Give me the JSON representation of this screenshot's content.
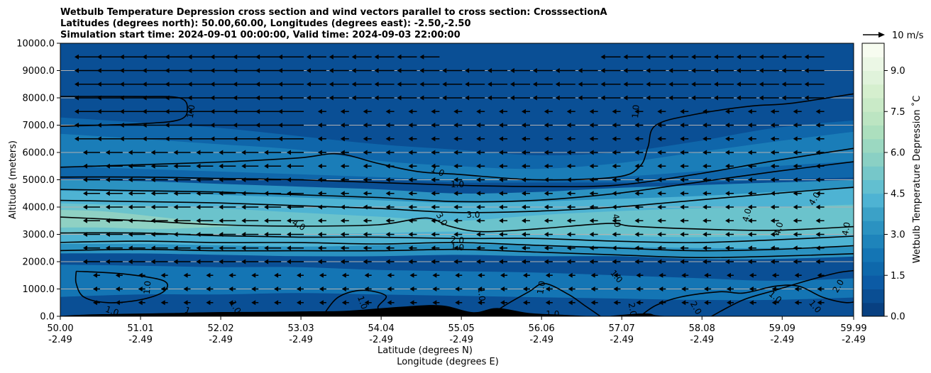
{
  "chart_data": {
    "type": "heatmap",
    "title_lines": [
      "Wetbulb Temperature Depression cross section and wind vectors parallel to cross section: CrosssectionA",
      "Latitudes (degrees north): 50.00,60.00, Longitudes (degrees east): -2.50,-2.50",
      "Simulation start time: 2024-09-01 00:00:00, Valid time: 2024-09-03 22:00:00"
    ],
    "ylabel": "Altitude (meters)",
    "xlabel_lines": [
      "Latitude (degrees N)",
      "Longitude (degrees E)"
    ],
    "ylim": [
      0,
      10000
    ],
    "xlim": [
      50.0,
      59.99
    ],
    "y_ticks": [
      {
        "value": 0,
        "label": "0.0"
      },
      {
        "value": 1000,
        "label": "1000.0"
      },
      {
        "value": 2000,
        "label": "2000.0"
      },
      {
        "value": 3000,
        "label": "3000.0"
      },
      {
        "value": 4000,
        "label": "4000.0"
      },
      {
        "value": 5000,
        "label": "5000.0"
      },
      {
        "value": 6000,
        "label": "6000.0"
      },
      {
        "value": 7000,
        "label": "7000.0"
      },
      {
        "value": 8000,
        "label": "8000.0"
      },
      {
        "value": 9000,
        "label": "9000.0"
      },
      {
        "value": 10000,
        "label": "10000.0"
      }
    ],
    "x_ticks": [
      {
        "value": 50.0,
        "lat": "50.00",
        "lon": "-2.49"
      },
      {
        "value": 51.01,
        "lat": "51.01",
        "lon": "-2.49"
      },
      {
        "value": 52.02,
        "lat": "52.02",
        "lon": "-2.49"
      },
      {
        "value": 53.03,
        "lat": "53.03",
        "lon": "-2.49"
      },
      {
        "value": 54.04,
        "lat": "54.04",
        "lon": "-2.49"
      },
      {
        "value": 55.05,
        "lat": "55.05",
        "lon": "-2.49"
      },
      {
        "value": 56.06,
        "lat": "56.06",
        "lon": "-2.49"
      },
      {
        "value": 57.07,
        "lat": "57.07",
        "lon": "-2.49"
      },
      {
        "value": 58.08,
        "lat": "58.08",
        "lon": "-2.49"
      },
      {
        "value": 59.09,
        "lat": "59.09",
        "lon": "-2.49"
      },
      {
        "value": 59.99,
        "lat": "59.99",
        "lon": "-2.49"
      }
    ],
    "grid": "horizontal",
    "colorbar": {
      "label": "Wetbulb Temperature Depression ˚C",
      "range": [
        0,
        10
      ],
      "step": 0.5,
      "ticks": [
        {
          "value": 0,
          "label": "0.0"
        },
        {
          "value": 1.5,
          "label": "1.5"
        },
        {
          "value": 3.0,
          "label": "3.0"
        },
        {
          "value": 4.5,
          "label": "4.5"
        },
        {
          "value": 6.0,
          "label": "6.0"
        },
        {
          "value": 7.5,
          "label": "7.5"
        },
        {
          "value": 9.0,
          "label": "9.0"
        }
      ],
      "colors": [
        "#084081",
        "#0a4e93",
        "#0c5ba5",
        "#0e68ab",
        "#1475b4",
        "#1e84bb",
        "#2b92c1",
        "#3ba1c7",
        "#4eb3d3",
        "#62bfd0",
        "#76c7c9",
        "#8ad0c4",
        "#9bd8c1",
        "#acdfbe",
        "#bce5c2",
        "#c9eac7",
        "#d5efce",
        "#e0f3db",
        "#ebf7e5",
        "#f7fcf0"
      ]
    },
    "wind_key": {
      "label": "10 m/s",
      "speed": 10
    },
    "contour_levels": [
      1.0,
      2.0,
      3.0,
      4.0
    ],
    "contour_labels": [
      {
        "text": "1.0",
        "lat": 51.65,
        "alt": 7500,
        "rot": -80
      },
      {
        "text": "1.0",
        "lat": 54.75,
        "alt": 5300,
        "rot": 25
      },
      {
        "text": "1.0",
        "lat": 55.0,
        "alt": 4820,
        "rot": 0
      },
      {
        "text": "3.0",
        "lat": 54.8,
        "alt": 3550,
        "rot": 60
      },
      {
        "text": "3.0",
        "lat": 55.2,
        "alt": 3700,
        "rot": 0
      },
      {
        "text": "4.0",
        "lat": 53.0,
        "alt": 3330,
        "rot": 30
      },
      {
        "text": "2.0",
        "lat": 55.0,
        "alt": 2780,
        "rot": 5
      },
      {
        "text": "1.0",
        "lat": 55.0,
        "alt": 2520,
        "rot": 5
      },
      {
        "text": "4.0",
        "lat": 57.0,
        "alt": 3500,
        "rot": 80
      },
      {
        "text": "4.0",
        "lat": 58.65,
        "alt": 3700,
        "rot": -75
      },
      {
        "text": "4.0",
        "lat": 59.05,
        "alt": 3200,
        "rot": -75
      },
      {
        "text": "4.0",
        "lat": 59.5,
        "alt": 4300,
        "rot": -60
      },
      {
        "text": "4.0",
        "lat": 59.9,
        "alt": 3200,
        "rot": -80
      },
      {
        "text": "1.0",
        "lat": 57.25,
        "alt": 7500,
        "rot": -85
      },
      {
        "text": "1.0",
        "lat": 57.0,
        "alt": 1450,
        "rot": 50
      },
      {
        "text": "1.0",
        "lat": 51.1,
        "alt": 1050,
        "rot": -85
      },
      {
        "text": "1.0",
        "lat": 50.65,
        "alt": 180,
        "rot": 20
      },
      {
        "text": "1",
        "lat": 51.6,
        "alt": 200,
        "rot": 20
      },
      {
        "text": "1.0",
        "lat": 52.2,
        "alt": 330,
        "rot": 60
      },
      {
        "text": "1.0",
        "lat": 53.8,
        "alt": 500,
        "rot": 70
      },
      {
        "text": "1.0",
        "lat": 55.3,
        "alt": 800,
        "rot": 85
      },
      {
        "text": "1.0",
        "lat": 56.06,
        "alt": 1050,
        "rot": -80
      },
      {
        "text": "1.0",
        "lat": 56.2,
        "alt": 60,
        "rot": 0
      },
      {
        "text": "1.0",
        "lat": 59.0,
        "alt": 700,
        "rot": 40
      },
      {
        "text": "1.0",
        "lat": 59.5,
        "alt": 350,
        "rot": 50
      },
      {
        "text": "2.0",
        "lat": 59.8,
        "alt": 1100,
        "rot": -60
      },
      {
        "text": "2.0",
        "lat": 57.2,
        "alt": 250,
        "rot": 80
      },
      {
        "text": "2.0",
        "lat": 58.0,
        "alt": 300,
        "rot": 60
      }
    ],
    "description": "Cross section of wetbulb temperature depression (filled contours, 0-10 C) with black contour lines at 1,2,3,4 C and wind vectors (mostly westward-pointing arrows) along the section; terrain in black along the bottom."
  }
}
